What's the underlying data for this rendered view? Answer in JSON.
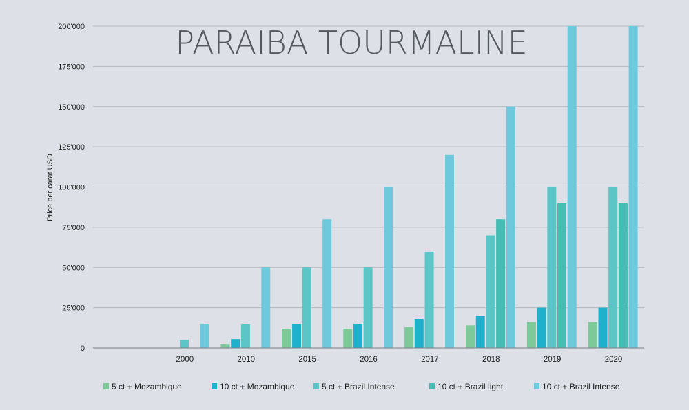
{
  "chart_data": {
    "type": "bar",
    "title": "PARAIBA TOURMALINE",
    "xlabel": "",
    "ylabel": "Price per carat USD",
    "categories": [
      "2000",
      "2010",
      "2015",
      "2016",
      "2017",
      "2018",
      "2019",
      "2020"
    ],
    "ylim": [
      0,
      200000
    ],
    "yticks": [
      0,
      25000,
      50000,
      75000,
      100000,
      125000,
      150000,
      175000,
      200000
    ],
    "ytick_labels": [
      "0",
      "25'000",
      "50'000",
      "75'000",
      "100'000",
      "125'000",
      "150'000",
      "175'000",
      "200'000"
    ],
    "grid": true,
    "legend_position": "bottom",
    "series": [
      {
        "name": "5 ct +  Mozambique",
        "color": "#7ec99a",
        "values": [
          0,
          2500,
          12000,
          12000,
          13000,
          14000,
          16000,
          16000
        ]
      },
      {
        "name": "10 ct +  Mozambique",
        "color": "#1fb0cb",
        "values": [
          0,
          5500,
          15000,
          15000,
          18000,
          20000,
          25000,
          25000
        ]
      },
      {
        "name": "5 ct +  Brazil Intense",
        "color": "#5cc5c6",
        "values": [
          5000,
          15000,
          50000,
          50000,
          60000,
          70000,
          100000,
          100000
        ]
      },
      {
        "name": "10 ct +  Brazil light",
        "color": "#45bdb3",
        "values": [
          0,
          0,
          0,
          0,
          0,
          80000,
          90000,
          90000
        ]
      },
      {
        "name": "10 ct +  Brazil Intense",
        "color": "#6ec9dc",
        "values": [
          15000,
          50000,
          80000,
          100000,
          120000,
          150000,
          200000,
          200000
        ]
      }
    ]
  }
}
